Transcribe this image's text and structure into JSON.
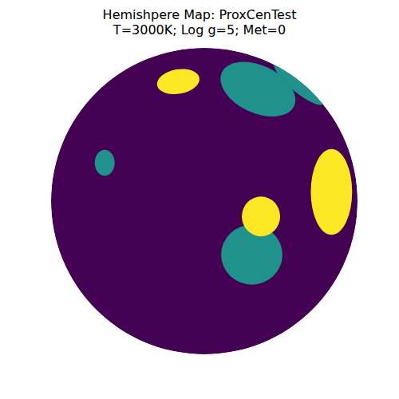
{
  "chart_data": {
    "type": "hemisphere_map",
    "title": "Hemishpere Map: ProxCenTest",
    "subtitle": "T=3000K; Log g=5; Met=0",
    "xlim": [
      -1,
      1
    ],
    "ylim": [
      -1,
      1
    ],
    "tick_labels": false,
    "grid": false,
    "clim": [
      0,
      2
    ],
    "disk_value": 0,
    "regions": [
      {
        "x": 0.35,
        "y": 0.73,
        "rx": 0.26,
        "ry": 0.155,
        "angle": 25,
        "value": 1
      },
      {
        "x": 0.62,
        "y": 0.77,
        "rx": 0.21,
        "ry": 0.06,
        "angle": 40,
        "value": 1
      },
      {
        "x": -0.65,
        "y": 0.25,
        "rx": 0.065,
        "ry": 0.085,
        "angle": 0,
        "value": 1
      },
      {
        "x": 0.31,
        "y": -0.35,
        "rx": 0.2,
        "ry": 0.195,
        "angle": 0,
        "value": 1
      },
      {
        "x": -0.17,
        "y": 0.78,
        "rx": 0.14,
        "ry": 0.08,
        "angle": -10,
        "value": 2
      },
      {
        "x": 0.83,
        "y": 0.06,
        "rx": 0.135,
        "ry": 0.28,
        "angle": 0,
        "value": 2
      },
      {
        "x": 0.37,
        "y": -0.1,
        "rx": 0.125,
        "ry": 0.13,
        "angle": 0,
        "value": 2
      }
    ]
  }
}
